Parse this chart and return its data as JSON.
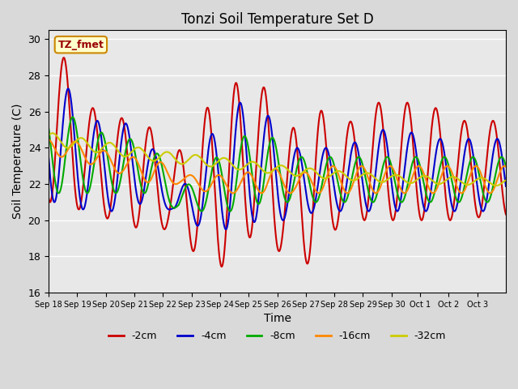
{
  "title": "Tonzi Soil Temperature Set D",
  "xlabel": "Time",
  "ylabel": "Soil Temperature (C)",
  "ylim": [
    16,
    30.5
  ],
  "plot_bg": "#e8e8e8",
  "label_box_text": "TZ_fmet",
  "label_box_facecolor": "#ffffcc",
  "label_box_edgecolor": "#cc8800",
  "series": [
    {
      "label": "-2cm",
      "color": "#cc0000",
      "lw": 1.5
    },
    {
      "label": "-4cm",
      "color": "#0000cc",
      "lw": 1.5
    },
    {
      "label": "-8cm",
      "color": "#00aa00",
      "lw": 1.5
    },
    {
      "label": "-16cm",
      "color": "#ff8800",
      "lw": 1.5
    },
    {
      "label": "-32cm",
      "color": "#cccc00",
      "lw": 1.5
    }
  ],
  "xtick_labels": [
    "Sep 18",
    "Sep 19",
    "Sep 20",
    "Sep 21",
    "Sep 22",
    "Sep 23",
    "Sep 24",
    "Sep 25",
    "Sep 26",
    "Sep 27",
    "Sep 28",
    "Sep 29",
    "Sep 30",
    "Oct 1",
    "Oct 2",
    "Oct 3"
  ],
  "ytick_values": [
    16,
    18,
    20,
    22,
    24,
    26,
    28,
    30
  ],
  "grid_color": "#ffffff",
  "grid_lw": 1.0,
  "fig_facecolor": "#d9d9d9"
}
